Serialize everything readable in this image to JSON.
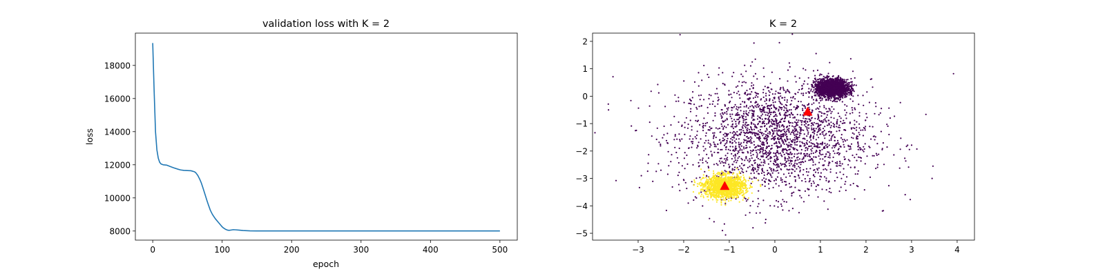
{
  "chart_data": [
    {
      "type": "line",
      "title": "validation loss with K = 2",
      "xlabel": "epoch",
      "ylabel": "loss",
      "xlim": [
        -25,
        525
      ],
      "ylim": [
        7450,
        19950
      ],
      "xticks": [
        0,
        100,
        200,
        300,
        400,
        500
      ],
      "yticks": [
        8000,
        10000,
        12000,
        14000,
        16000,
        18000
      ],
      "grid": false,
      "color": "#1f77b4",
      "series": [
        {
          "x": [
            0,
            2,
            4,
            6,
            8,
            10,
            12,
            15,
            20,
            25,
            30,
            35,
            40,
            45,
            50,
            55,
            60,
            62,
            65,
            68,
            70,
            72,
            75,
            78,
            80,
            83,
            86,
            90,
            94,
            98,
            100,
            102,
            105,
            108,
            110,
            113,
            116,
            120,
            125,
            130,
            135,
            140,
            150,
            200,
            250,
            300,
            350,
            400,
            450,
            500
          ],
          "y": [
            19350,
            16500,
            14000,
            12900,
            12400,
            12150,
            12050,
            12000,
            11980,
            11900,
            11820,
            11750,
            11690,
            11660,
            11650,
            11640,
            11580,
            11520,
            11350,
            11100,
            10900,
            10650,
            10250,
            9850,
            9600,
            9250,
            9000,
            8750,
            8550,
            8350,
            8250,
            8180,
            8100,
            8050,
            8040,
            8060,
            8080,
            8070,
            8050,
            8030,
            8020,
            8010,
            8005,
            8005,
            8005,
            8005,
            8005,
            8005,
            8005,
            8005
          ]
        }
      ]
    },
    {
      "type": "scatter",
      "title": "K = 2",
      "xlim": [
        -4.0,
        4.38
      ],
      "ylim": [
        -5.25,
        2.3
      ],
      "xticks": [
        -3,
        -2,
        -1,
        0,
        1,
        2,
        3,
        4
      ],
      "yticks": [
        -5,
        -4,
        -3,
        -2,
        -1,
        0,
        1,
        2
      ],
      "grid": false,
      "series": [
        {
          "cluster": 0,
          "color": "#440154",
          "count": 4200,
          "components": [
            {
              "center": [
                0.0,
                -1.5
              ],
              "std": [
                1.05,
                1.05
              ],
              "count": 2300
            },
            {
              "center": [
                1.25,
                0.3
              ],
              "std": [
                0.18,
                0.16
              ],
              "count": 1900
            }
          ]
        },
        {
          "cluster": 1,
          "color": "#fde725",
          "count": 1600,
          "components": [
            {
              "center": [
                -1.1,
                -3.3
              ],
              "std": [
                0.22,
                0.2
              ],
              "count": 1600
            }
          ]
        }
      ],
      "outliers": [
        [
          -3.65,
          -0.5
        ],
        [
          3.92,
          0.82
        ],
        [
          0.1,
          1.95
        ],
        [
          -1.15,
          -4.9
        ],
        [
          3.45,
          -3.0
        ],
        [
          -2.5,
          -2.7
        ],
        [
          -1.9,
          -3.9
        ]
      ],
      "centroids": {
        "marker": "triangle",
        "color": "#ff0000",
        "points": [
          [
            0.72,
            -0.57
          ],
          [
            -1.1,
            -3.28
          ]
        ]
      }
    }
  ]
}
